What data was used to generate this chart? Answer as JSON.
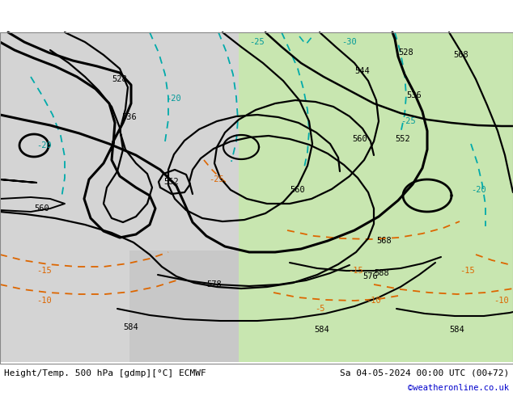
{
  "title_left": "Height/Temp. 500 hPa [gdmp][°C] ECMWF",
  "title_right": "Sa 04-05-2024 00:00 UTC (00+72)",
  "credit": "©weatheronline.co.uk",
  "credit_color": "#0000cc",
  "fig_width": 6.34,
  "fig_height": 4.9
}
